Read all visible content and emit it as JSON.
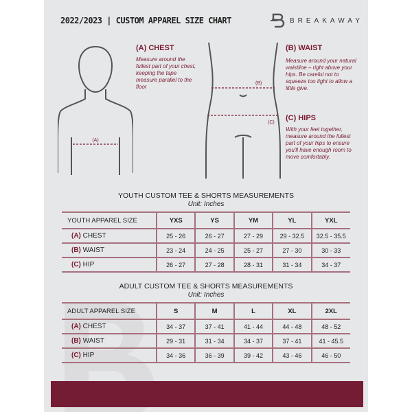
{
  "header": {
    "title": "2022/2023  |  CUSTOM APPAREL SIZE CHART",
    "brand": "BREAKAWAY"
  },
  "colors": {
    "accent": "#741c33",
    "page": "#e6e7e9"
  },
  "guide": {
    "chest": {
      "heading": "(A) CHEST",
      "text": "Measure around the fullest part of your chest, keeping the tape measure parallel to the floor",
      "marker": "(A)"
    },
    "waist": {
      "heading": "(B) WAIST",
      "text": "Measure around your natural waistline – right above your hips. Be careful not to squeeze too tight to allow a little give.",
      "marker": "(B)"
    },
    "hips": {
      "heading": "(C) HIPS",
      "text": "With your feet together, measure around the fullest part of your hips to ensure you'll have enough room to move comfortably.",
      "marker": "(C)"
    }
  },
  "youth": {
    "title": "YOUTH CUSTOM TEE & SHORTS MEASUREMENTS",
    "unit": "Unit: Inches",
    "header": "YOUTH APPAREL SIZE",
    "sizes": [
      "YXS",
      "YS",
      "YM",
      "YL",
      "YXL"
    ],
    "rows": [
      {
        "prefix": "(A)",
        "label": "CHEST",
        "values": [
          "25 - 26",
          "26 - 27",
          "27 - 29",
          "29 - 32.5",
          "32.5 - 35.5"
        ]
      },
      {
        "prefix": "(B)",
        "label": "WAIST",
        "values": [
          "23 - 24",
          "24 - 25",
          "25 - 27",
          "27 - 30",
          "30 - 33"
        ]
      },
      {
        "prefix": "(C)",
        "label": "HIP",
        "values": [
          "26 - 27",
          "27 - 28",
          "28 - 31",
          "31 - 34",
          "34 - 37"
        ]
      }
    ]
  },
  "adult": {
    "title": "ADULT CUSTOM TEE & SHORTS MEASUREMENTS",
    "unit": "Unit: Inches",
    "header": "ADULT APPAREL SIZE",
    "sizes": [
      "S",
      "M",
      "L",
      "XL",
      "2XL"
    ],
    "rows": [
      {
        "prefix": "(A)",
        "label": "CHEST",
        "values": [
          "34 - 37",
          "37 - 41",
          "41 - 44",
          "44 - 48",
          "48 - 52"
        ]
      },
      {
        "prefix": "(B)",
        "label": "WAIST",
        "values": [
          "29 - 31",
          "31 - 34",
          "34 - 37",
          "37 - 41",
          "41 - 45.5"
        ]
      },
      {
        "prefix": "(C)",
        "label": "HIP",
        "values": [
          "34 - 36",
          "36 - 39",
          "39 - 42",
          "43 - 46",
          "46 - 50"
        ]
      }
    ]
  }
}
